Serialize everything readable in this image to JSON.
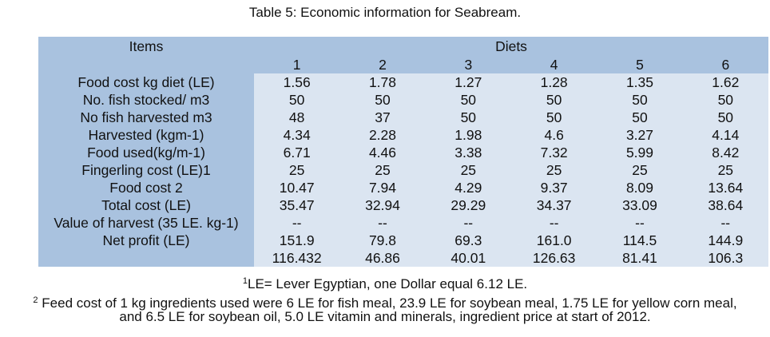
{
  "caption": "Table 5: Economic information for Seabream.",
  "header": {
    "items": "Items",
    "diets": "Diets",
    "diet_numbers": [
      "1",
      "2",
      "3",
      "4",
      "5",
      "6"
    ]
  },
  "rows": [
    {
      "label": "Food cost kg diet (LE)",
      "values": [
        "1.56",
        "1.78",
        "1.27",
        "1.28",
        "1.35",
        "1.62"
      ]
    },
    {
      "label": "No. fish stocked/ m3",
      "values": [
        "50",
        "50",
        "50",
        "50",
        "50",
        "50"
      ]
    },
    {
      "label": "No fish harvested m3",
      "values": [
        "48",
        "37",
        "50",
        "50",
        "50",
        "50"
      ]
    },
    {
      "label": "Harvested (kgm-1)",
      "values": [
        "4.34",
        "2.28",
        "1.98",
        "4.6",
        "3.27",
        "4.14"
      ]
    },
    {
      "label": "Food used(kg/m-1)",
      "values": [
        "6.71",
        "4.46",
        "3.38",
        "7.32",
        "5.99",
        "8.42"
      ]
    },
    {
      "label": "Fingerling cost (LE)1",
      "values": [
        "25",
        "25",
        "25",
        "25",
        "25",
        "25"
      ]
    },
    {
      "label": "Food cost 2",
      "values": [
        "10.47",
        "7.94",
        "4.29",
        "9.37",
        "8.09",
        "13.64"
      ]
    },
    {
      "label": "Total cost (LE)",
      "values": [
        "35.47",
        "32.94",
        "29.29",
        "34.37",
        "33.09",
        "38.64"
      ]
    },
    {
      "label": "Value of harvest (35 LE. kg-1)",
      "values": [
        "--",
        "--",
        "--",
        "--",
        "--",
        "--"
      ]
    },
    {
      "label": "Net profit (LE)",
      "values": [
        "151.9",
        "79.8",
        "69.3",
        "161.0",
        "114.5",
        "144.9"
      ]
    },
    {
      "label": "",
      "values": [
        "116.432",
        "46.86",
        "40.01",
        "126.63",
        "81.41",
        "106.3"
      ]
    }
  ],
  "footnotes": {
    "fn1_mark": "1",
    "fn1_text": "LE= Lever Egyptian, one Dollar equal 6.12 LE.",
    "fn2_mark": "2",
    "fn2_text": " Feed cost of 1 kg ingredients used were 6 LE for fish meal, 23.9 LE for soybean meal, 1.75 LE for yellow corn meal,",
    "fn2_text_line2": "and 6.5 LE for soybean oil, 5.0 LE vitamin and minerals, ingredient price at start of 2012."
  }
}
